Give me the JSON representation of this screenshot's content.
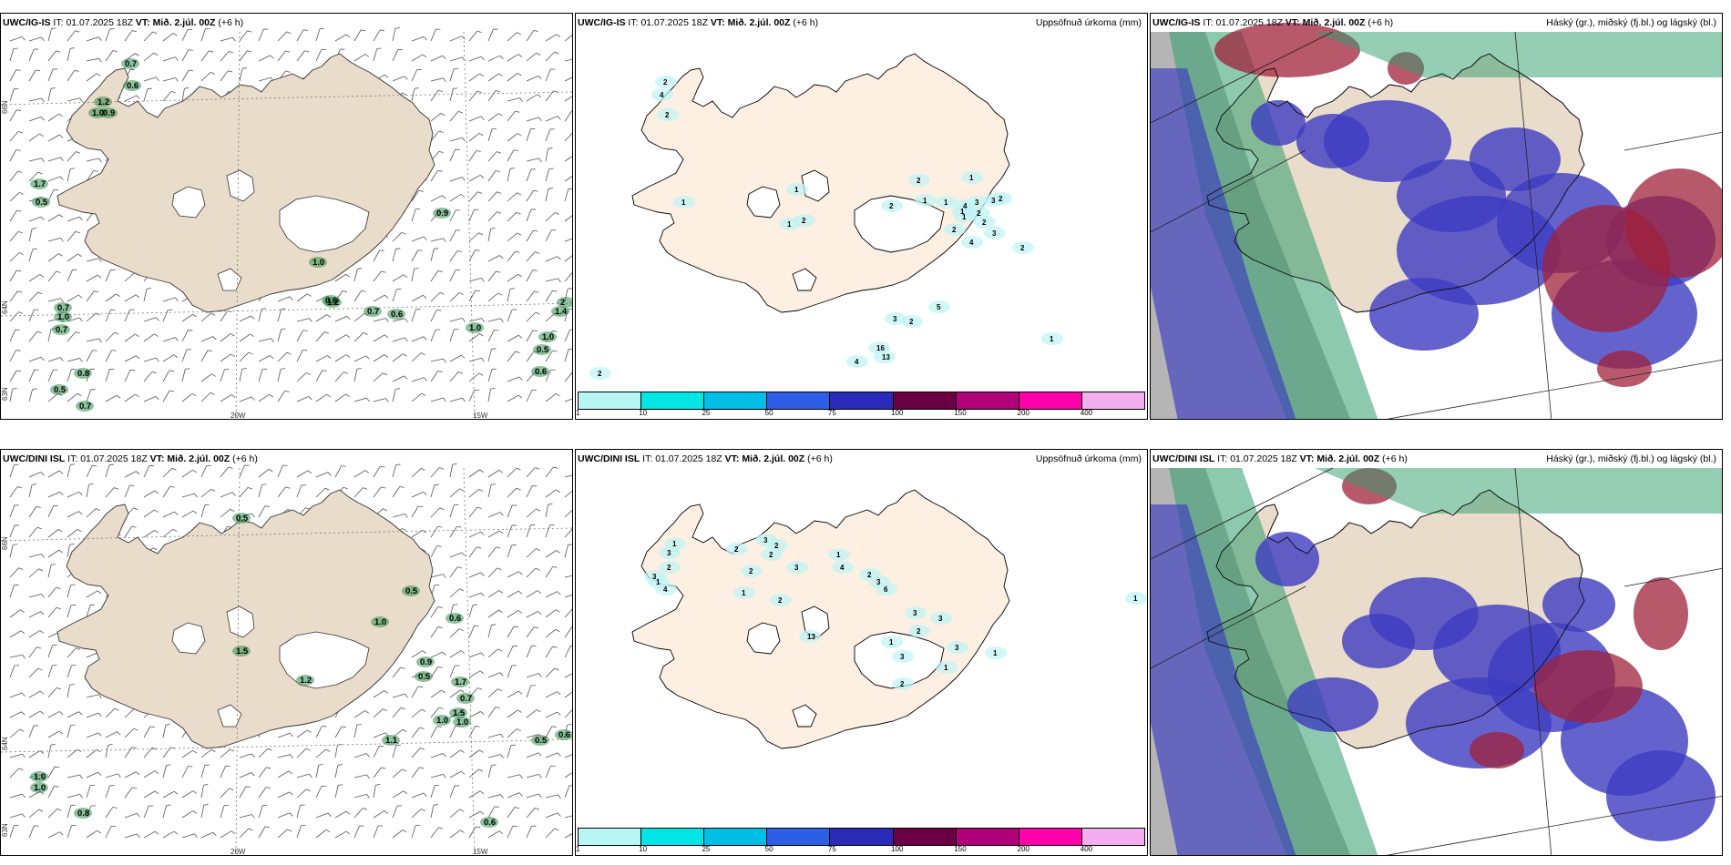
{
  "rows": [
    {
      "model": "UWC/IG-IS",
      "it_label": "IT:",
      "it_value": "01.07.2025 18Z",
      "vt_label": "VT:",
      "vt_value": "Mið. 2.júl. 00Z",
      "lead": "(+6 h)",
      "precip_title": "Uppsöfnuð úrkoma (mm)",
      "cloud_title": "Háský (gr.), miðský (fj.bl.) og lágský (bl.)",
      "wind_values": [
        "0.7",
        "0.6",
        "1.2",
        "1.0",
        "0.9",
        "1.7",
        "0.5",
        "0.9",
        "1.0",
        "0.6",
        "1.2",
        "0.7",
        "1.0",
        "0.7",
        "0.7",
        "0.6",
        "0.8",
        "0.5",
        "0.7",
        "1.0",
        "1.0",
        "0.5",
        "0.6",
        "1.4",
        "2"
      ],
      "precip_values": [
        "2",
        "4",
        "2",
        "1",
        "1",
        "1",
        "2",
        "2",
        "1",
        "2",
        "1",
        "1",
        "4",
        "3",
        "3",
        "2",
        "1",
        "2",
        "2",
        "1",
        "2",
        "3",
        "4",
        "2",
        "5",
        "3",
        "2",
        "16",
        "13",
        "4",
        "1",
        "2"
      ]
    },
    {
      "model": "UWC/DINI ISL",
      "it_label": "IT:",
      "it_value": "01.07.2025 18Z",
      "vt_label": "VT:",
      "vt_value": "Mið. 2.júl. 00Z",
      "lead": "(+6 h)",
      "precip_title": "Uppsöfnuð úrkoma (mm)",
      "cloud_title": "Háský (gr.), miðský (fj.bl.) og lágský (bl.)",
      "wind_values": [
        "0.5",
        "1.0",
        "0.5",
        "1.0",
        "0.6",
        "0.9",
        "0.8",
        "0.5",
        "1.2",
        "1.5",
        "1.7",
        "0.7",
        "1.5",
        "1.0",
        "1.0",
        "1.1",
        "1.0",
        "0.5",
        "0.6",
        "0.6"
      ],
      "precip_values": [
        "1",
        "1",
        "3",
        "2",
        "3",
        "4",
        "1",
        "2",
        "2",
        "3",
        "2",
        "2",
        "3",
        "2",
        "1",
        "4",
        "2",
        "3",
        "6",
        "3",
        "2",
        "1",
        "3",
        "3",
        "13",
        "3",
        "1",
        "2",
        "1",
        "1"
      ]
    }
  ],
  "axes": {
    "lon_20": "20W",
    "lon_15": "15W",
    "lat_66": "66N",
    "lat_64": "64N",
    "lat_63": "63N"
  },
  "legend": {
    "colors": [
      "#b8f6f6",
      "#00e6e6",
      "#00bfe6",
      "#2e5ee6",
      "#2a2ab8",
      "#6b0045",
      "#b0007a",
      "#ff00aa",
      "#f3aef0"
    ],
    "labels": [
      "1",
      "10",
      "25",
      "50",
      "75",
      "100",
      "150",
      "200",
      "400"
    ]
  },
  "colors": {
    "land": "#eadccb",
    "land_precip": "#fdf0e2",
    "high_cloud": "#6b6b6b",
    "mid_cloud": "#2e9c6b",
    "low_cloud": "#3d3cc2",
    "red_cloud": "#a0203a"
  }
}
